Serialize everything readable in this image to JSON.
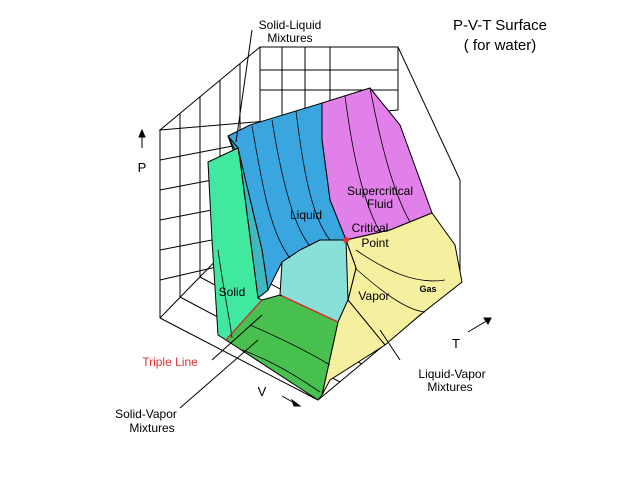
{
  "title": {
    "line1": "P-V-T Surface",
    "line2": "( for water)"
  },
  "axes": {
    "p": "P",
    "t": "T",
    "v": "V"
  },
  "regions": {
    "solid_liquid": {
      "line1": "Solid-Liquid",
      "line2": "Mixtures"
    },
    "supercritical": {
      "line1": "Supercritical",
      "line2": "Fluid"
    },
    "liquid": "Liquid",
    "critical_point": {
      "line1": "Critical",
      "line2": "Point"
    },
    "solid": "Solid",
    "vapor": "Vapor",
    "gas": "Gas",
    "triple_line": "Triple Line",
    "liquid_vapor": {
      "line1": "Liquid-Vapor",
      "line2": "Mixtures"
    },
    "solid_vapor": {
      "line1": "Solid-Vapor",
      "line2": "Mixtures"
    }
  },
  "colors": {
    "solid": "#40e8a0",
    "liquid": "#3aa6e0",
    "supercritical": "#e080e8",
    "gas": "#f4f0a0",
    "liquid_vapor": "#88e0d8",
    "solid_vapor": "#48c050",
    "triple_line": "#e03030"
  }
}
